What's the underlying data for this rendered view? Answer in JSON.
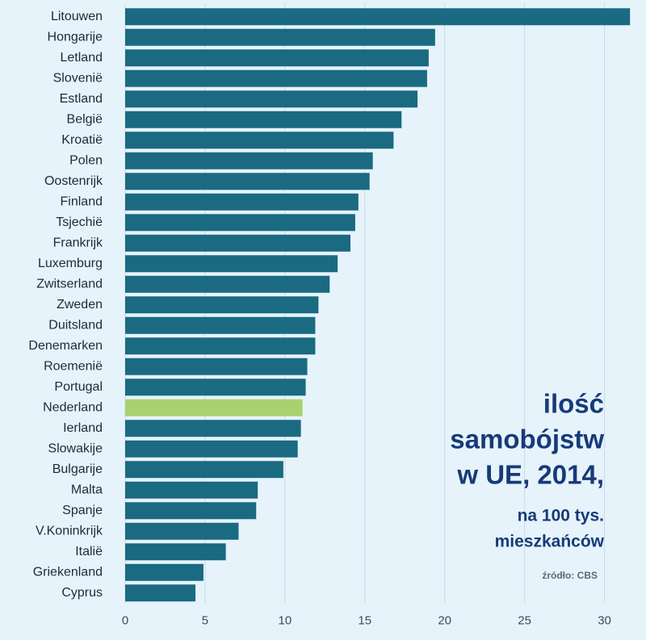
{
  "chart_data": {
    "type": "bar",
    "orientation": "horizontal",
    "title": [
      "ilość",
      "samobójstw",
      "w UE, 2014,"
    ],
    "subtitle": [
      "na 100 tys.",
      "mieszkańców"
    ],
    "source": "źródło: CBS",
    "categories": [
      "Litouwen",
      "Hongarije",
      "Letland",
      "Slovenië",
      "Estland",
      "België",
      "Kroatië",
      "Polen",
      "Oostenrijk",
      "Finland",
      "Tsjechië",
      "Frankrijk",
      "Luxemburg",
      "Zwitserland",
      "Zweden",
      "Duitsland",
      "Denemarken",
      "Roemenië",
      "Portugal",
      "Nederland",
      "Ierland",
      "Slowakije",
      "Bulgarije",
      "Malta",
      "Spanje",
      "V.Koninkrijk",
      "Italië",
      "Griekenland",
      "Cyprus"
    ],
    "values": [
      31.6,
      19.4,
      19.0,
      18.9,
      18.3,
      17.3,
      16.8,
      15.5,
      15.3,
      14.6,
      14.4,
      14.1,
      13.3,
      12.8,
      12.1,
      11.9,
      11.9,
      11.4,
      11.3,
      11.1,
      11.0,
      10.8,
      9.9,
      8.3,
      8.2,
      7.1,
      6.3,
      4.9,
      4.4
    ],
    "colors": [
      "#1a6a82",
      "#1a6a82",
      "#1a6a82",
      "#1a6a82",
      "#1a6a82",
      "#1a6a82",
      "#1a6a82",
      "#1a6a82",
      "#1a6a82",
      "#1a6a82",
      "#1a6a82",
      "#1a6a82",
      "#1a6a82",
      "#1a6a82",
      "#1a6a82",
      "#1a6a82",
      "#1a6a82",
      "#1a6a82",
      "#1a6a82",
      "#a8d16f",
      "#1a6a82",
      "#1a6a82",
      "#1a6a82",
      "#1a6a82",
      "#1a6a82",
      "#1a6a82",
      "#1a6a82",
      "#1a6a82",
      "#1a6a82"
    ],
    "xlim": [
      0,
      32.5
    ],
    "xticks": [
      0,
      5,
      10,
      15,
      20,
      25,
      30
    ],
    "grid": true
  }
}
